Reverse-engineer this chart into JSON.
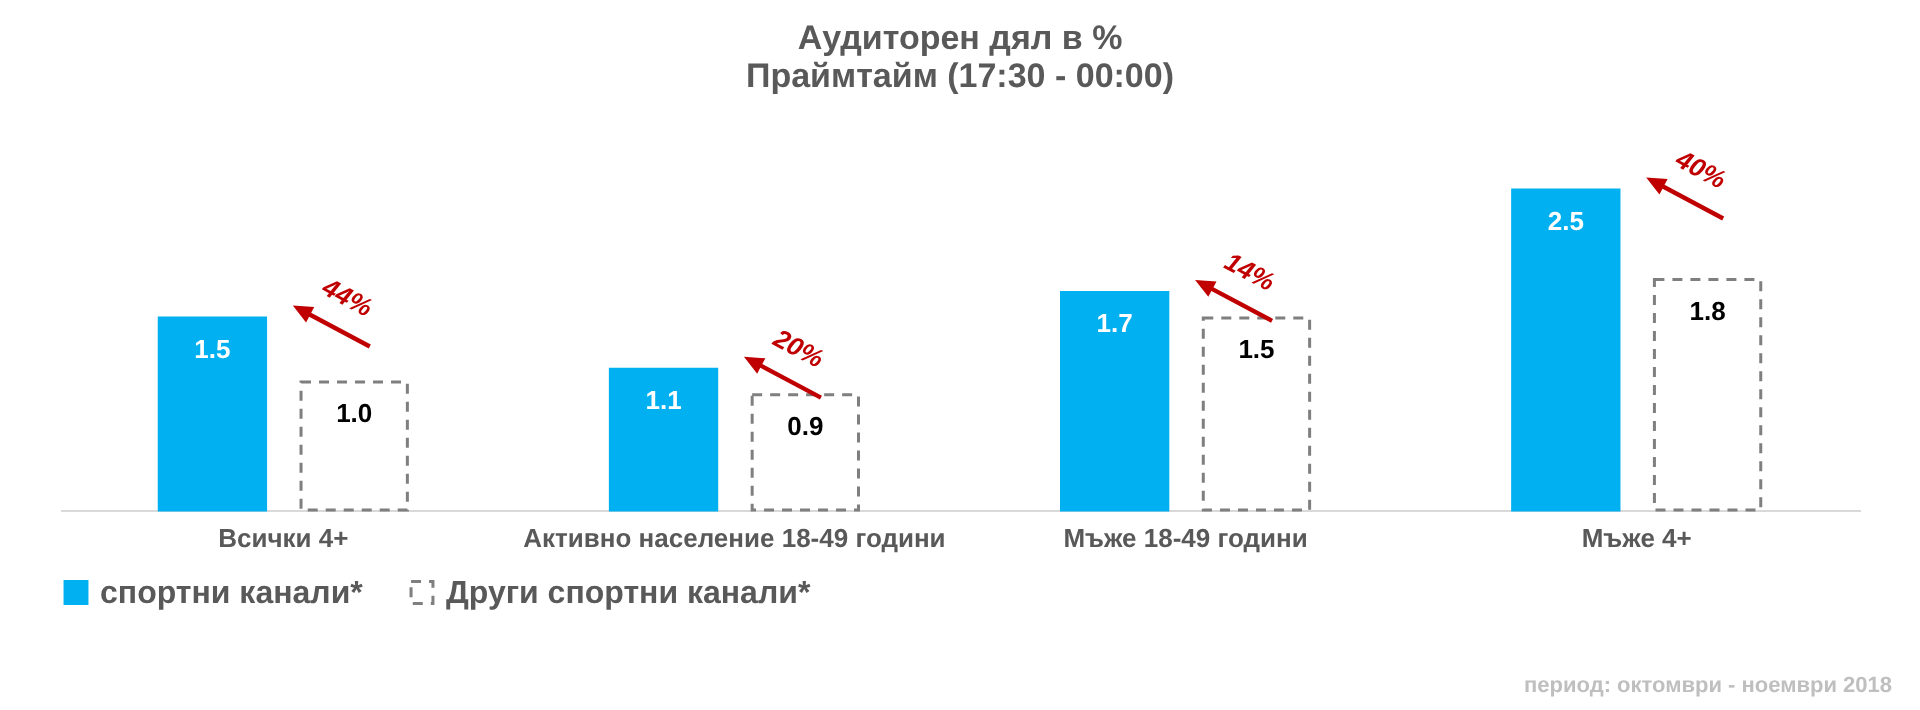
{
  "chart_data": {
    "type": "bar",
    "title": "Аудиторен дял в %",
    "subtitle": "Праймтайм (17:30 - 00:00)",
    "categories": [
      "Всички 4+",
      "Активно население 18-49 години",
      "Мъже 18-49 години",
      "Мъже 4+"
    ],
    "series": [
      {
        "name": "спортни канали*",
        "color": "#00b0f0",
        "values": [
          1.5,
          1.1,
          1.7,
          2.5
        ],
        "value_labels": [
          "1.5",
          "1.1",
          "1.7",
          "2.5"
        ]
      },
      {
        "name": "Други спортни канали*",
        "color": "#7f7f7f",
        "values": [
          1.0,
          0.9,
          1.5,
          1.8
        ],
        "value_labels": [
          "1.0",
          "0.9",
          "1.5",
          "1.8"
        ]
      }
    ],
    "annotations": [
      "44%",
      "20%",
      "14%",
      "40%",
      "период: октомври - ноември 2018"
    ],
    "legend": "bottom",
    "grid": false
  }
}
